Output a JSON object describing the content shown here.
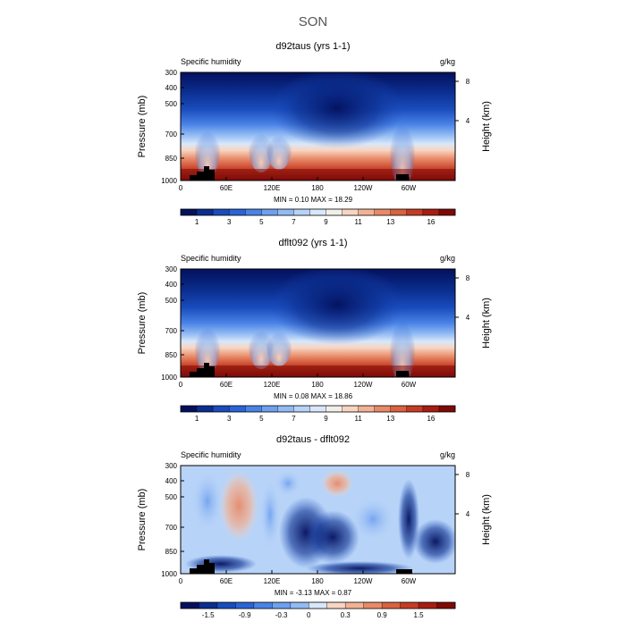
{
  "figure_title": "SON",
  "chart_data": [
    {
      "type": "heatmap",
      "title": "d92taus (yrs 1-1)",
      "left_label": "Specific humidity",
      "right_label": "g/kg",
      "ylabel": "Pressure (mb)",
      "ylabel_right": "Height (km)",
      "xticks": [
        "0",
        "60E",
        "120E",
        "180",
        "120W",
        "60W"
      ],
      "yticks": [
        "300",
        "400",
        "500",
        "700",
        "850",
        "1000"
      ],
      "yticks_right": [
        "8",
        "4"
      ],
      "stats": "MIN =    0.10   MAX =   18.29",
      "colorbar_labels": [
        "1",
        "3",
        "5",
        "7",
        "9",
        "11",
        "13",
        "16"
      ],
      "colorbar_colors": [
        "#03105c",
        "#0b2e8f",
        "#1a4cbd",
        "#2a64d6",
        "#4a83e6",
        "#6ea0ef",
        "#92bbf4",
        "#b7d3f8",
        "#d8e7fa",
        "#f2efe9",
        "#f8d5c2",
        "#f2b295",
        "#e88a68",
        "#d9623f",
        "#c53c24",
        "#a81d12",
        "#7e0a07"
      ]
    },
    {
      "type": "heatmap",
      "title": "dflt092 (yrs 1-1)",
      "left_label": "Specific humidity",
      "right_label": "g/kg",
      "ylabel": "Pressure (mb)",
      "ylabel_right": "Height (km)",
      "xticks": [
        "0",
        "60E",
        "120E",
        "180",
        "120W",
        "60W"
      ],
      "yticks": [
        "300",
        "400",
        "500",
        "700",
        "850",
        "1000"
      ],
      "yticks_right": [
        "8",
        "4"
      ],
      "stats": "MIN =    0.08   MAX =   18.86",
      "colorbar_labels": [
        "1",
        "3",
        "5",
        "7",
        "9",
        "11",
        "13",
        "16"
      ],
      "colorbar_colors": [
        "#03105c",
        "#0b2e8f",
        "#1a4cbd",
        "#2a64d6",
        "#4a83e6",
        "#6ea0ef",
        "#92bbf4",
        "#b7d3f8",
        "#d8e7fa",
        "#f2efe9",
        "#f8d5c2",
        "#f2b295",
        "#e88a68",
        "#d9623f",
        "#c53c24",
        "#a81d12",
        "#7e0a07"
      ]
    },
    {
      "type": "heatmap",
      "title": "d92taus - dflt092",
      "left_label": "Specific humidity",
      "right_label": "g/kg",
      "ylabel": "Pressure (mb)",
      "ylabel_right": "Height (km)",
      "xticks": [
        "0",
        "60E",
        "120E",
        "180",
        "120W",
        "60W"
      ],
      "yticks": [
        "300",
        "400",
        "500",
        "700",
        "850",
        "1000"
      ],
      "yticks_right": [
        "8",
        "4"
      ],
      "stats": "MIN =   -3.13   MAX =    0.87",
      "colorbar_labels": [
        "-1.5",
        "-0.9",
        "-0.3",
        "0",
        "0.3",
        "0.9",
        "1.5"
      ],
      "colorbar_colors": [
        "#03105c",
        "#0b2e8f",
        "#1a4cbd",
        "#2a64d6",
        "#4a83e6",
        "#6ea0ef",
        "#92bbf4",
        "#d8e7fa",
        "#f8d5c2",
        "#f2b295",
        "#e88a68",
        "#d9623f",
        "#c53c24",
        "#a81d12",
        "#7e0a07"
      ]
    }
  ]
}
